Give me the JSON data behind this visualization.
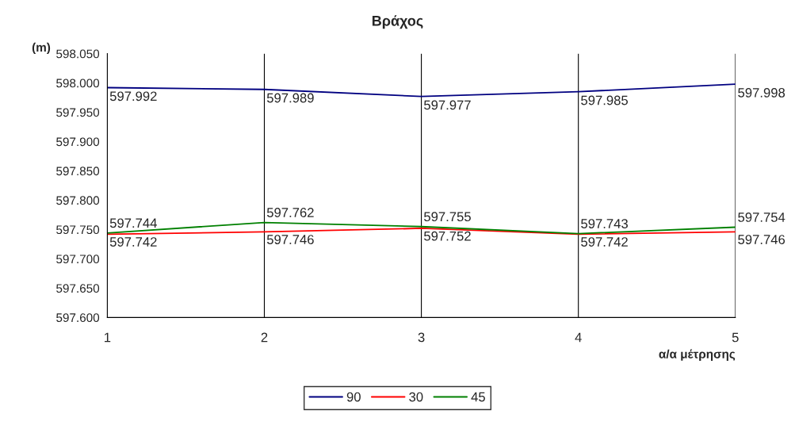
{
  "chart_data": {
    "type": "line",
    "title": "Βράχος",
    "ylabel": "(m)",
    "xlabel": "α/α μέτρησης",
    "x": [
      1,
      2,
      3,
      4,
      5
    ],
    "series": [
      {
        "name": "90",
        "color": "#000080",
        "values": [
          597.992,
          597.989,
          597.977,
          597.985,
          597.998
        ]
      },
      {
        "name": "30",
        "color": "#ff0000",
        "values": [
          597.742,
          597.746,
          597.752,
          597.742,
          597.746
        ]
      },
      {
        "name": "45",
        "color": "#008000",
        "values": [
          597.744,
          597.762,
          597.755,
          597.743,
          597.754
        ]
      }
    ],
    "xlim": [
      1,
      5
    ],
    "xticks": [
      1,
      2,
      3,
      4,
      5
    ],
    "ylim": [
      597.6,
      598.05
    ],
    "yticks": [
      {
        "value": 597.6,
        "label": "597.600"
      },
      {
        "value": 597.65,
        "label": "597.650"
      },
      {
        "value": 597.7,
        "label": "597.700"
      },
      {
        "value": 597.75,
        "label": "597.750"
      },
      {
        "value": 597.8,
        "label": "597.800"
      },
      {
        "value": 597.85,
        "label": "597.850"
      },
      {
        "value": 597.9,
        "label": "597.900"
      },
      {
        "value": 597.95,
        "label": "597.950"
      },
      {
        "value": 598.0,
        "label": "598.000"
      },
      {
        "value": 598.05,
        "label": "598.050"
      }
    ],
    "grid": "x",
    "legend": "bottom",
    "marker": "none",
    "line_style": "solid",
    "data_labels": true
  }
}
